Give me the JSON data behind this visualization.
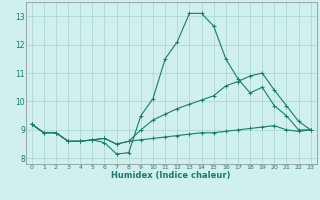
{
  "xlabel": "Humidex (Indice chaleur)",
  "background_color": "#cff0ec",
  "grid_color": "#b0d8d4",
  "line_color": "#1a7a6e",
  "xlim": [
    -0.5,
    23.5
  ],
  "ylim": [
    7.8,
    13.5
  ],
  "yticks": [
    8,
    9,
    10,
    11,
    12,
    13
  ],
  "xticks": [
    0,
    1,
    2,
    3,
    4,
    5,
    6,
    7,
    8,
    9,
    10,
    11,
    12,
    13,
    14,
    15,
    16,
    17,
    18,
    19,
    20,
    21,
    22,
    23
  ],
  "series1_x": [
    0,
    1,
    2,
    3,
    4,
    5,
    6,
    7,
    8,
    9,
    10,
    11,
    12,
    13,
    14,
    15,
    16,
    17,
    18,
    19,
    20,
    21,
    22,
    23
  ],
  "series1_y": [
    9.2,
    8.9,
    8.9,
    8.6,
    8.6,
    8.65,
    8.55,
    8.15,
    8.2,
    9.5,
    10.1,
    11.5,
    12.1,
    13.1,
    13.1,
    12.65,
    11.5,
    10.8,
    10.3,
    10.5,
    9.85,
    9.5,
    9.0,
    9.0
  ],
  "series2_x": [
    0,
    1,
    2,
    3,
    4,
    5,
    6,
    7,
    8,
    9,
    10,
    11,
    12,
    13,
    14,
    15,
    16,
    17,
    18,
    19,
    20,
    21,
    22,
    23
  ],
  "series2_y": [
    9.2,
    8.9,
    8.9,
    8.6,
    8.6,
    8.65,
    8.7,
    8.5,
    8.6,
    9.0,
    9.35,
    9.55,
    9.75,
    9.9,
    10.05,
    10.2,
    10.55,
    10.7,
    10.9,
    11.0,
    10.4,
    9.85,
    9.3,
    9.0
  ],
  "series3_x": [
    0,
    1,
    2,
    3,
    4,
    5,
    6,
    7,
    8,
    9,
    10,
    11,
    12,
    13,
    14,
    15,
    16,
    17,
    18,
    19,
    20,
    21,
    22,
    23
  ],
  "series3_y": [
    9.2,
    8.9,
    8.9,
    8.6,
    8.6,
    8.65,
    8.7,
    8.5,
    8.6,
    8.65,
    8.7,
    8.75,
    8.8,
    8.85,
    8.9,
    8.9,
    8.95,
    9.0,
    9.05,
    9.1,
    9.15,
    9.0,
    8.95,
    9.0
  ]
}
